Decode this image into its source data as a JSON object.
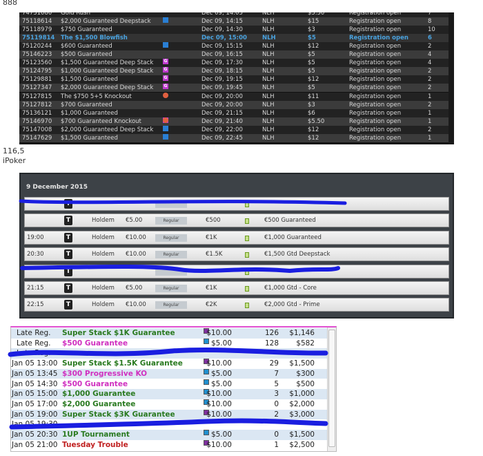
{
  "sections": {
    "s888": "888",
    "value": "116,5",
    "ipoker": "iPoker"
  },
  "t1": {
    "rows": [
      {
        "id": "74731080",
        "name": "Gold Rush",
        "icons": [],
        "date": "Dec 09, 14:05",
        "game": "NLH",
        "buyin": "$5.50",
        "status": "Registration open",
        "count": "7"
      },
      {
        "id": "75118614",
        "name": "$2,000 Guaranteed Deepstack",
        "icons": [
          "bar"
        ],
        "date": "Dec 09, 14:15",
        "game": "NLH",
        "buyin": "$15",
        "status": "Registration open",
        "count": "8"
      },
      {
        "id": "75118979",
        "name": "$750 Guaranteed",
        "icons": [],
        "date": "Dec 09, 14:30",
        "game": "NLH",
        "buyin": "$3",
        "status": "Registration open",
        "count": "10"
      },
      {
        "id": "75119814",
        "name": "The $1,500 Blowfish",
        "icons": [],
        "date": "Dec 09, 15:00",
        "game": "NLH",
        "buyin": "$5",
        "status": "Registration open",
        "count": "6",
        "selected": true
      },
      {
        "id": "75120244",
        "name": "$600 Guaranteed",
        "icons": [
          "bar"
        ],
        "date": "Dec 09, 15:15",
        "game": "NLH",
        "buyin": "$12",
        "status": "Registration open",
        "count": "2"
      },
      {
        "id": "75146223",
        "name": "$500 Guaranteed",
        "icons": [],
        "date": "Dec 09, 16:15",
        "game": "NLH",
        "buyin": "$5",
        "status": "Registration open",
        "count": "4"
      },
      {
        "id": "75123560",
        "name": "$1,500 Guaranteed Deep Stack",
        "icons": [
          "bar",
          "g"
        ],
        "date": "Dec 09, 17:30",
        "game": "NLH",
        "buyin": "$5",
        "status": "Registration open",
        "count": "4"
      },
      {
        "id": "75124795",
        "name": "$1,000 Guaranteed Deep Stack",
        "icons": [
          "bar",
          "g"
        ],
        "date": "Dec 09, 18:15",
        "game": "NLH",
        "buyin": "$5",
        "status": "Registration open",
        "count": "2"
      },
      {
        "id": "75129881",
        "name": "$1,500 Guaranteed",
        "icons": [
          "g"
        ],
        "date": "Dec 09, 19:15",
        "game": "NLH",
        "buyin": "$12",
        "status": "Registration open",
        "count": "2"
      },
      {
        "id": "75127347",
        "name": "$2,000 Guaranteed Deep Stack",
        "icons": [
          "bar",
          "g"
        ],
        "date": "Dec 09, 19:45",
        "game": "NLH",
        "buyin": "$5",
        "status": "Registration open",
        "count": "2"
      },
      {
        "id": "75127815",
        "name": "The $750 5+5 Knockout",
        "icons": [
          "ko"
        ],
        "date": "Dec 09, 20:00",
        "game": "NLH",
        "buyin": "$11",
        "status": "Registration open",
        "count": "1"
      },
      {
        "id": "75127812",
        "name": "$700 Guaranteed",
        "icons": [],
        "date": "Dec 09, 20:00",
        "game": "NLH",
        "buyin": "$3",
        "status": "Registration open",
        "count": "2"
      },
      {
        "id": "75136121",
        "name": "$1,000 Guaranteed",
        "icons": [],
        "date": "Dec 09, 21:15",
        "game": "NLH",
        "buyin": "$6",
        "status": "Registration open",
        "count": "1"
      },
      {
        "id": "75146970",
        "name": "$700 Guaranteed Knockout",
        "icons": [
          "g",
          "ko"
        ],
        "date": "Dec 09, 21:40",
        "game": "NLH",
        "buyin": "$5.50",
        "status": "Registration open",
        "count": "1"
      },
      {
        "id": "75147008",
        "name": "$2,000 Guaranteed Deep Stack",
        "icons": [
          "bar"
        ],
        "date": "Dec 09, 22:00",
        "game": "NLH",
        "buyin": "$12",
        "status": "Registration open",
        "count": "2"
      },
      {
        "id": "75147629",
        "name": "$1,500 Guaranteed",
        "icons": [
          "bar"
        ],
        "date": "Dec 09, 22:45",
        "game": "NLH",
        "buyin": "$12",
        "status": "Registration open",
        "count": "1"
      }
    ]
  },
  "t2": {
    "date_header": "9 December 2015",
    "type_icon": "T",
    "rows": [
      {
        "time": "",
        "game": "",
        "buyin": "",
        "type": "",
        "prize": "",
        "name": "",
        "redacted": true
      },
      {
        "time": "",
        "game": "Holdem",
        "buyin": "€5.00",
        "type": "Regular",
        "prize": "€500",
        "name": "€500 Guaranteed"
      },
      {
        "time": "19:00",
        "game": "Holdem",
        "buyin": "€10.00",
        "type": "Regular",
        "prize": "€1K",
        "name": "€1,000 Guaranteed"
      },
      {
        "time": "20:30",
        "game": "Holdem",
        "buyin": "€10.00",
        "type": "Regular",
        "prize": "€1.5K",
        "name": "€1,500 Gtd Deepstack"
      },
      {
        "time": "",
        "game": "",
        "buyin": "",
        "type": "",
        "prize": "",
        "name": "",
        "redacted": true
      },
      {
        "time": "21:15",
        "game": "Holdem",
        "buyin": "€5.00",
        "type": "Regular",
        "prize": "€1K",
        "name": "€1,000 Gtd - Core"
      },
      {
        "time": "22:15",
        "game": "Holdem",
        "buyin": "€10.00",
        "type": "Regular",
        "prize": "€2K",
        "name": "€2,000 Gtd - Prime"
      }
    ]
  },
  "t3": {
    "rows": [
      {
        "time": "Late Reg.",
        "name": "Super Stack $1K Guarantee",
        "color": "green",
        "icons": [
          "#e08020",
          "#8030a0"
        ],
        "buyin": "$10.00",
        "players": "126",
        "prize": "$1,146"
      },
      {
        "time": "Late Reg.",
        "name": "$500 Guarantee",
        "color": "pink",
        "icons": [
          "#e08020",
          "#2090d0"
        ],
        "buyin": "$5.00",
        "players": "128",
        "prize": "$582"
      },
      {
        "time": "Late Reg.",
        "name": "",
        "color": "pink",
        "icons": [],
        "buyin": "",
        "players": "",
        "prize": "",
        "redacted": true
      },
      {
        "time": "Jan 05 13:00",
        "name": "Super Stack $1.5K Guarantee",
        "color": "green",
        "icons": [
          "#8030a0"
        ],
        "buyin": "$10.00",
        "players": "29",
        "prize": "$1,500"
      },
      {
        "time": "Jan 05 13:45",
        "name": "$300 Progressive KO",
        "color": "pink",
        "icons": [
          "#b030c0",
          "#2090d0"
        ],
        "buyin": "$5.00",
        "players": "7",
        "prize": "$300"
      },
      {
        "time": "Jan 05 14:30",
        "name": "$500 Guarantee",
        "color": "pink",
        "icons": [
          "#30a030",
          "#2090d0"
        ],
        "buyin": "$5.00",
        "players": "5",
        "prize": "$500"
      },
      {
        "time": "Jan 05 15:00",
        "name": "$1,000 Guarantee",
        "color": "green",
        "icons": [
          "#30a030",
          "#2090d0"
        ],
        "buyin": "$10.00",
        "players": "3",
        "prize": "$1,000"
      },
      {
        "time": "Jan 05 17:00",
        "name": "$2,000 Guarantee",
        "color": "green",
        "icons": [
          "#30a030",
          "#2090d0"
        ],
        "buyin": "$10.00",
        "players": "0",
        "prize": "$2,000"
      },
      {
        "time": "Jan 05 19:00",
        "name": "Super Stack $3K Guarantee",
        "color": "green",
        "icons": [
          "#30a030",
          "#8030a0"
        ],
        "buyin": "$10.00",
        "players": "2",
        "prize": "$3,000"
      },
      {
        "time": "Jan 05 19:30",
        "name": "",
        "color": "pink",
        "icons": [],
        "buyin": "",
        "players": "",
        "prize": "",
        "redacted": true
      },
      {
        "time": "Jan 05 20:30",
        "name": "1UP Tournament",
        "color": "green",
        "icons": [
          "#e08020",
          "#2090d0"
        ],
        "buyin": "$5.00",
        "players": "0",
        "prize": "$1,500"
      },
      {
        "time": "Jan 05 21:00",
        "name": "Tuesday Trouble",
        "color": "red",
        "icons": [
          "#b030c0",
          "#c02020",
          "#8030a0"
        ],
        "buyin": "$10.00",
        "players": "1",
        "prize": "$2,500"
      }
    ]
  },
  "colors": {
    "redaction": "#1a1ee0",
    "selected_text": "#4aa3e0",
    "t3_accent": "#e050d0"
  }
}
